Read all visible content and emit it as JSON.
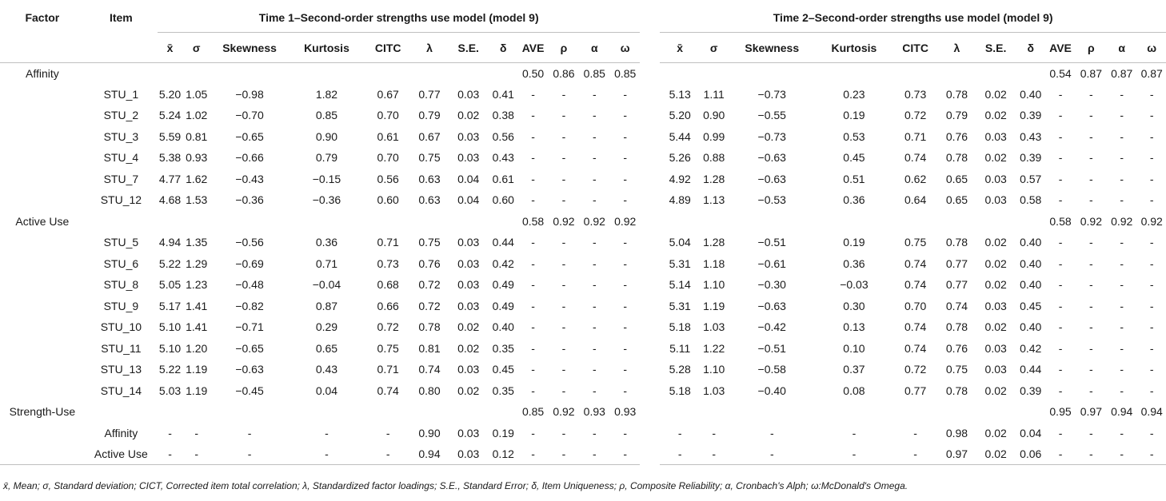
{
  "headers": {
    "factor": "Factor",
    "item": "Item",
    "time1": "Time 1–Second-order strengths use model (model 9)",
    "time2": "Time 2–Second-order strengths use model (model 9)",
    "columns": [
      "x̄",
      "σ",
      "Skewness",
      "Kurtosis",
      "CITC",
      "λ",
      "S.E.",
      "δ",
      "AVE",
      "ρ",
      "α",
      "ω"
    ]
  },
  "rows": [
    {
      "factor": "Affinity",
      "item": "",
      "t1": [
        "",
        "",
        "",
        "",
        "",
        "",
        "",
        "",
        "0.50",
        "0.86",
        "0.85",
        "0.85"
      ],
      "t2": [
        "",
        "",
        "",
        "",
        "",
        "",
        "",
        "",
        "0.54",
        "0.87",
        "0.87",
        "0.87"
      ]
    },
    {
      "factor": "",
      "item": "STU_1",
      "t1": [
        "5.20",
        "1.05",
        "−0.98",
        "1.82",
        "0.67",
        "0.77",
        "0.03",
        "0.41",
        "-",
        "-",
        "-",
        "-"
      ],
      "t2": [
        "5.13",
        "1.11",
        "−0.73",
        "0.23",
        "0.73",
        "0.78",
        "0.02",
        "0.40",
        "-",
        "-",
        "-",
        "-"
      ]
    },
    {
      "factor": "",
      "item": "STU_2",
      "t1": [
        "5.24",
        "1.02",
        "−0.70",
        "0.85",
        "0.70",
        "0.79",
        "0.02",
        "0.38",
        "-",
        "-",
        "-",
        "-"
      ],
      "t2": [
        "5.20",
        "0.90",
        "−0.55",
        "0.19",
        "0.72",
        "0.79",
        "0.02",
        "0.39",
        "-",
        "-",
        "-",
        "-"
      ]
    },
    {
      "factor": "",
      "item": "STU_3",
      "t1": [
        "5.59",
        "0.81",
        "−0.65",
        "0.90",
        "0.61",
        "0.67",
        "0.03",
        "0.56",
        "-",
        "-",
        "-",
        "-"
      ],
      "t2": [
        "5.44",
        "0.99",
        "−0.73",
        "0.53",
        "0.71",
        "0.76",
        "0.03",
        "0.43",
        "-",
        "-",
        "-",
        "-"
      ]
    },
    {
      "factor": "",
      "item": "STU_4",
      "t1": [
        "5.38",
        "0.93",
        "−0.66",
        "0.79",
        "0.70",
        "0.75",
        "0.03",
        "0.43",
        "-",
        "-",
        "-",
        "-"
      ],
      "t2": [
        "5.26",
        "0.88",
        "−0.63",
        "0.45",
        "0.74",
        "0.78",
        "0.02",
        "0.39",
        "-",
        "-",
        "-",
        "-"
      ]
    },
    {
      "factor": "",
      "item": "STU_7",
      "t1": [
        "4.77",
        "1.62",
        "−0.43",
        "−0.15",
        "0.56",
        "0.63",
        "0.04",
        "0.61",
        "-",
        "-",
        "-",
        "-"
      ],
      "t2": [
        "4.92",
        "1.28",
        "−0.63",
        "0.51",
        "0.62",
        "0.65",
        "0.03",
        "0.57",
        "-",
        "-",
        "-",
        "-"
      ]
    },
    {
      "factor": "",
      "item": "STU_12",
      "t1": [
        "4.68",
        "1.53",
        "−0.36",
        "−0.36",
        "0.60",
        "0.63",
        "0.04",
        "0.60",
        "-",
        "-",
        "-",
        "-"
      ],
      "t2": [
        "4.89",
        "1.13",
        "−0.53",
        "0.36",
        "0.64",
        "0.65",
        "0.03",
        "0.58",
        "-",
        "-",
        "-",
        "-"
      ]
    },
    {
      "factor": "Active Use",
      "item": "",
      "t1": [
        "",
        "",
        "",
        "",
        "",
        "",
        "",
        "",
        "0.58",
        "0.92",
        "0.92",
        "0.92"
      ],
      "t2": [
        "",
        "",
        "",
        "",
        "",
        "",
        "",
        "",
        "0.58",
        "0.92",
        "0.92",
        "0.92"
      ]
    },
    {
      "factor": "",
      "item": "STU_5",
      "t1": [
        "4.94",
        "1.35",
        "−0.56",
        "0.36",
        "0.71",
        "0.75",
        "0.03",
        "0.44",
        "-",
        "-",
        "-",
        "-"
      ],
      "t2": [
        "5.04",
        "1.28",
        "−0.51",
        "0.19",
        "0.75",
        "0.78",
        "0.02",
        "0.40",
        "-",
        "-",
        "-",
        "-"
      ]
    },
    {
      "factor": "",
      "item": "STU_6",
      "t1": [
        "5.22",
        "1.29",
        "−0.69",
        "0.71",
        "0.73",
        "0.76",
        "0.03",
        "0.42",
        "-",
        "-",
        "-",
        "-"
      ],
      "t2": [
        "5.31",
        "1.18",
        "−0.61",
        "0.36",
        "0.74",
        "0.77",
        "0.02",
        "0.40",
        "-",
        "-",
        "-",
        "-"
      ]
    },
    {
      "factor": "",
      "item": "STU_8",
      "t1": [
        "5.05",
        "1.23",
        "−0.48",
        "−0.04",
        "0.68",
        "0.72",
        "0.03",
        "0.49",
        "-",
        "-",
        "-",
        "-"
      ],
      "t2": [
        "5.14",
        "1.10",
        "−0.30",
        "−0.03",
        "0.74",
        "0.77",
        "0.02",
        "0.40",
        "-",
        "-",
        "-",
        "-"
      ]
    },
    {
      "factor": "",
      "item": "STU_9",
      "t1": [
        "5.17",
        "1.41",
        "−0.82",
        "0.87",
        "0.66",
        "0.72",
        "0.03",
        "0.49",
        "-",
        "-",
        "-",
        "-"
      ],
      "t2": [
        "5.31",
        "1.19",
        "−0.63",
        "0.30",
        "0.70",
        "0.74",
        "0.03",
        "0.45",
        "-",
        "-",
        "-",
        "-"
      ]
    },
    {
      "factor": "",
      "item": "STU_10",
      "t1": [
        "5.10",
        "1.41",
        "−0.71",
        "0.29",
        "0.72",
        "0.78",
        "0.02",
        "0.40",
        "-",
        "-",
        "-",
        "-"
      ],
      "t2": [
        "5.18",
        "1.03",
        "−0.42",
        "0.13",
        "0.74",
        "0.78",
        "0.02",
        "0.40",
        "-",
        "-",
        "-",
        "-"
      ]
    },
    {
      "factor": "",
      "item": "STU_11",
      "t1": [
        "5.10",
        "1.20",
        "−0.65",
        "0.65",
        "0.75",
        "0.81",
        "0.02",
        "0.35",
        "-",
        "-",
        "-",
        "-"
      ],
      "t2": [
        "5.11",
        "1.22",
        "−0.51",
        "0.10",
        "0.74",
        "0.76",
        "0.03",
        "0.42",
        "-",
        "-",
        "-",
        "-"
      ]
    },
    {
      "factor": "",
      "item": "STU_13",
      "t1": [
        "5.22",
        "1.19",
        "−0.63",
        "0.43",
        "0.71",
        "0.74",
        "0.03",
        "0.45",
        "-",
        "-",
        "-",
        "-"
      ],
      "t2": [
        "5.28",
        "1.10",
        "−0.58",
        "0.37",
        "0.72",
        "0.75",
        "0.03",
        "0.44",
        "-",
        "-",
        "-",
        "-"
      ]
    },
    {
      "factor": "",
      "item": "STU_14",
      "t1": [
        "5.03",
        "1.19",
        "−0.45",
        "0.04",
        "0.74",
        "0.80",
        "0.02",
        "0.35",
        "-",
        "-",
        "-",
        "-"
      ],
      "t2": [
        "5.18",
        "1.03",
        "−0.40",
        "0.08",
        "0.77",
        "0.78",
        "0.02",
        "0.39",
        "-",
        "-",
        "-",
        "-"
      ]
    },
    {
      "factor": "Strength-Use",
      "item": "",
      "t1": [
        "",
        "",
        "",
        "",
        "",
        "",
        "",
        "",
        "0.85",
        "0.92",
        "0.93",
        "0.93"
      ],
      "t2": [
        "",
        "",
        "",
        "",
        "",
        "",
        "",
        "",
        "0.95",
        "0.97",
        "0.94",
        "0.94"
      ]
    },
    {
      "factor": "",
      "item": "Affinity",
      "t1": [
        "-",
        "-",
        "-",
        "-",
        "-",
        "0.90",
        "0.03",
        "0.19",
        "-",
        "-",
        "-",
        "-"
      ],
      "t2": [
        "-",
        "-",
        "-",
        "-",
        "-",
        "0.98",
        "0.02",
        "0.04",
        "-",
        "-",
        "-",
        "-"
      ]
    },
    {
      "factor": "",
      "item": "Active Use",
      "t1": [
        "-",
        "-",
        "-",
        "-",
        "-",
        "0.94",
        "0.03",
        "0.12",
        "-",
        "-",
        "-",
        "-"
      ],
      "t2": [
        "-",
        "-",
        "-",
        "-",
        "-",
        "0.97",
        "0.02",
        "0.06",
        "-",
        "-",
        "-",
        "-"
      ]
    }
  ],
  "note": "x̄, Mean; σ, Standard deviation; CICT, Corrected item total correlation; λ, Standardized factor loadings; S.E., Standard Error; δ, Item Uniqueness; ρ, Composite Reliability; α, Cronbach's Alph; ω:McDonald's Omega."
}
